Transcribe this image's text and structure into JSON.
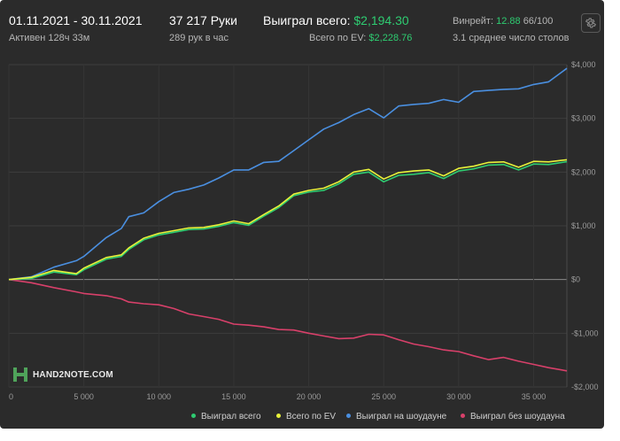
{
  "header": {
    "date_range": "01.11.2021 - 30.11.2021",
    "active_time": "Активен 128ч 33м",
    "hands": "37 217 Руки",
    "hands_per_hour": "289 рук в час",
    "won_total_label": "Выиграл всего:",
    "won_total_value": "$2,194.30",
    "ev_total_label": "Всего по EV:",
    "ev_total_value": "$2,228.76",
    "winrate_label": "Винрейт:",
    "winrate_value": "12.88",
    "winrate_extra": "66/100",
    "avg_tables": "3.1 среднее число столов",
    "settings_icon": "gear-icon"
  },
  "logo": {
    "text": "HAND2NOTE.COM",
    "icon": "hand2note-logo-icon"
  },
  "colors": {
    "panel_bg": "#2b2b2b",
    "won_total": "#2ecc71",
    "ev_total": "#e8f23a",
    "showdown": "#4a8fe0",
    "non_showdown": "#d8406a",
    "accent_green": "#2ecc71"
  },
  "chart_data": {
    "type": "line",
    "xlim": [
      0,
      37217
    ],
    "ylim": [
      -2000,
      4000
    ],
    "x_ticks": [
      0,
      5000,
      10000,
      15000,
      20000,
      25000,
      30000,
      35000
    ],
    "x_tick_labels": [
      "0",
      "5 000",
      "10 000",
      "15 000",
      "20 000",
      "25 000",
      "30 000",
      "35 000"
    ],
    "y_ticks": [
      4000,
      3000,
      2000,
      1000,
      0,
      -1000,
      -2000
    ],
    "y_tick_labels": [
      "$4,000",
      "$3,000",
      "$2,000",
      "$1,000",
      "$0",
      "-$1,000",
      "-$2,000"
    ],
    "grid": true,
    "legend_position": "bottom",
    "series": [
      {
        "name": "Выиграл всего",
        "color": "#2ecc71",
        "x": [
          0,
          1500,
          3000,
          4500,
          5000,
          6500,
          7500,
          8000,
          9000,
          10000,
          11000,
          12000,
          13000,
          14000,
          15000,
          16000,
          17000,
          18000,
          19000,
          20000,
          21000,
          22000,
          23000,
          24000,
          25000,
          26000,
          27000,
          28000,
          29000,
          30000,
          31000,
          32000,
          33000,
          34000,
          35000,
          36000,
          37217
        ],
        "values": [
          0,
          20,
          140,
          90,
          180,
          380,
          430,
          560,
          740,
          830,
          880,
          930,
          940,
          990,
          1060,
          1010,
          1180,
          1340,
          1560,
          1630,
          1660,
          1780,
          1960,
          2000,
          1820,
          1940,
          1960,
          1990,
          1880,
          2020,
          2060,
          2130,
          2140,
          2040,
          2150,
          2140,
          2194
        ]
      },
      {
        "name": "Всего по EV",
        "color": "#e8f23a",
        "x": [
          0,
          1500,
          3000,
          4500,
          5000,
          6500,
          7500,
          8000,
          9000,
          10000,
          11000,
          12000,
          13000,
          14000,
          15000,
          16000,
          17000,
          18000,
          19000,
          20000,
          21000,
          22000,
          23000,
          24000,
          25000,
          26000,
          27000,
          28000,
          29000,
          30000,
          31000,
          32000,
          33000,
          34000,
          35000,
          36000,
          37217
        ],
        "values": [
          0,
          40,
          170,
          110,
          210,
          410,
          460,
          590,
          770,
          860,
          910,
          960,
          970,
          1020,
          1090,
          1040,
          1210,
          1370,
          1590,
          1660,
          1700,
          1820,
          2000,
          2050,
          1870,
          1990,
          2020,
          2040,
          1930,
          2070,
          2110,
          2180,
          2190,
          2090,
          2200,
          2190,
          2229
        ]
      },
      {
        "name": "Выиграл на шоудауне",
        "color": "#4a8fe0",
        "x": [
          0,
          1500,
          3000,
          4500,
          5000,
          6500,
          7500,
          8000,
          9000,
          10000,
          11000,
          12000,
          13000,
          14000,
          15000,
          16000,
          17000,
          18000,
          19000,
          20000,
          21000,
          22000,
          23000,
          24000,
          25000,
          26000,
          27000,
          28000,
          29000,
          30000,
          31000,
          32000,
          33000,
          34000,
          35000,
          36000,
          37217
        ],
        "values": [
          0,
          50,
          230,
          350,
          430,
          780,
          950,
          1170,
          1240,
          1450,
          1620,
          1680,
          1760,
          1890,
          2040,
          2040,
          2180,
          2200,
          2400,
          2600,
          2800,
          2920,
          3070,
          3180,
          3010,
          3230,
          3260,
          3280,
          3350,
          3300,
          3500,
          3520,
          3540,
          3550,
          3630,
          3680,
          3930
        ]
      },
      {
        "name": "Выиграл без шоудауна",
        "color": "#d8406a",
        "x": [
          0,
          1500,
          3000,
          4500,
          5000,
          6500,
          7500,
          8000,
          9000,
          10000,
          11000,
          12000,
          13000,
          14000,
          15000,
          16000,
          17000,
          18000,
          19000,
          20000,
          21000,
          22000,
          23000,
          24000,
          25000,
          26000,
          27000,
          28000,
          29000,
          30000,
          31000,
          32000,
          33000,
          34000,
          35000,
          36000,
          37217
        ],
        "values": [
          0,
          -60,
          -150,
          -230,
          -260,
          -300,
          -360,
          -420,
          -450,
          -470,
          -540,
          -640,
          -690,
          -740,
          -830,
          -850,
          -880,
          -930,
          -940,
          -1000,
          -1050,
          -1100,
          -1090,
          -1020,
          -1030,
          -1120,
          -1200,
          -1250,
          -1310,
          -1340,
          -1420,
          -1490,
          -1450,
          -1520,
          -1580,
          -1640,
          -1700
        ]
      }
    ]
  }
}
